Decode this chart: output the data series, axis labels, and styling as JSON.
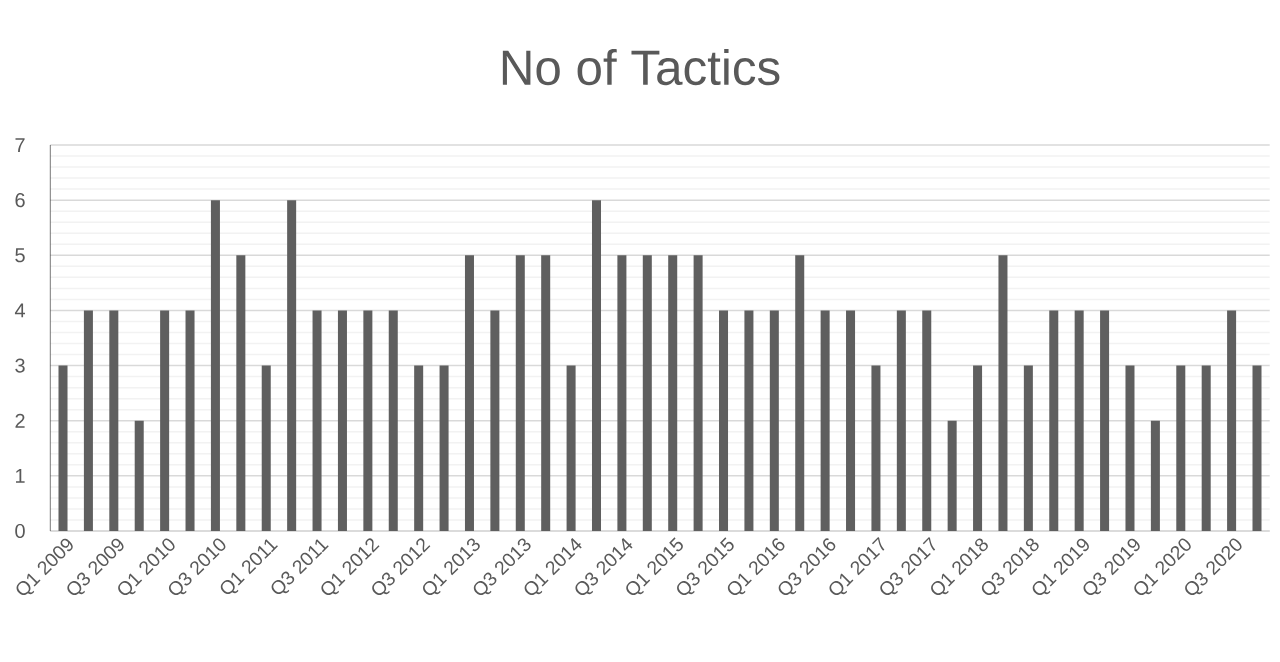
{
  "chart_data": {
    "type": "bar",
    "title": "No of Tactics",
    "categories": [
      "Q1 2009",
      null,
      "Q3 2009",
      null,
      "Q1 2010",
      null,
      "Q3 2010",
      null,
      "Q1 2011",
      null,
      "Q3 2011",
      null,
      "Q1 2012",
      null,
      "Q3 2012",
      null,
      "Q1 2013",
      null,
      "Q3 2013",
      null,
      "Q1 2014",
      null,
      "Q3 2014",
      null,
      "Q1 2015",
      null,
      "Q3 2015",
      null,
      "Q1 2016",
      null,
      "Q3 2016",
      null,
      "Q1 2017",
      null,
      "Q3 2017",
      null,
      "Q1 2018",
      null,
      "Q3 2018",
      null,
      "Q1 2019",
      null,
      "Q3 2019",
      null,
      "Q1 2020",
      null,
      "Q3 2020",
      null
    ],
    "values": [
      3,
      4,
      4,
      2,
      4,
      4,
      6,
      5,
      3,
      6,
      4,
      4,
      4,
      4,
      3,
      3,
      5,
      4,
      5,
      5,
      3,
      6,
      5,
      5,
      5,
      5,
      4,
      4,
      4,
      5,
      4,
      4,
      3,
      4,
      4,
      2,
      3,
      5,
      3,
      4,
      4,
      4,
      3,
      2,
      3,
      3,
      4,
      3
    ],
    "color": "#5f5f5f",
    "ylim": [
      0,
      7
    ],
    "yticks": [
      0,
      {
        "value": 0.2,
        "label": null
      },
      {
        "value": 0.4,
        "label": null
      },
      {
        "value": 0.6,
        "label": null
      },
      {
        "value": 0.8,
        "label": null
      },
      1,
      {
        "value": 1.2,
        "label": null
      },
      {
        "value": 1.4,
        "label": null
      },
      {
        "value": 1.6,
        "label": null
      },
      {
        "value": 1.8,
        "label": null
      },
      2,
      {
        "value": 2.2,
        "label": null
      },
      {
        "value": 2.4,
        "label": null
      },
      {
        "value": 2.6,
        "label": null
      },
      {
        "value": 2.8,
        "label": null
      },
      3,
      {
        "value": 3.2,
        "label": null
      },
      {
        "value": 3.4,
        "label": null
      },
      {
        "value": 3.6,
        "label": null
      },
      {
        "value": 3.8,
        "label": null
      },
      4,
      {
        "value": 4.2,
        "label": null
      },
      {
        "value": 4.4,
        "label": null
      },
      {
        "value": 4.6,
        "label": null
      },
      {
        "value": 4.8,
        "label": null
      },
      5,
      {
        "value": 5.2,
        "label": null
      },
      {
        "value": 5.4,
        "label": null
      },
      {
        "value": 5.6,
        "label": null
      },
      {
        "value": 5.8,
        "label": null
      },
      6,
      {
        "value": 6.2,
        "label": null
      },
      {
        "value": 6.4,
        "label": null
      },
      {
        "value": 6.6,
        "label": null
      },
      {
        "value": 6.8,
        "label": null
      },
      7
    ],
    "grid": "y"
  }
}
